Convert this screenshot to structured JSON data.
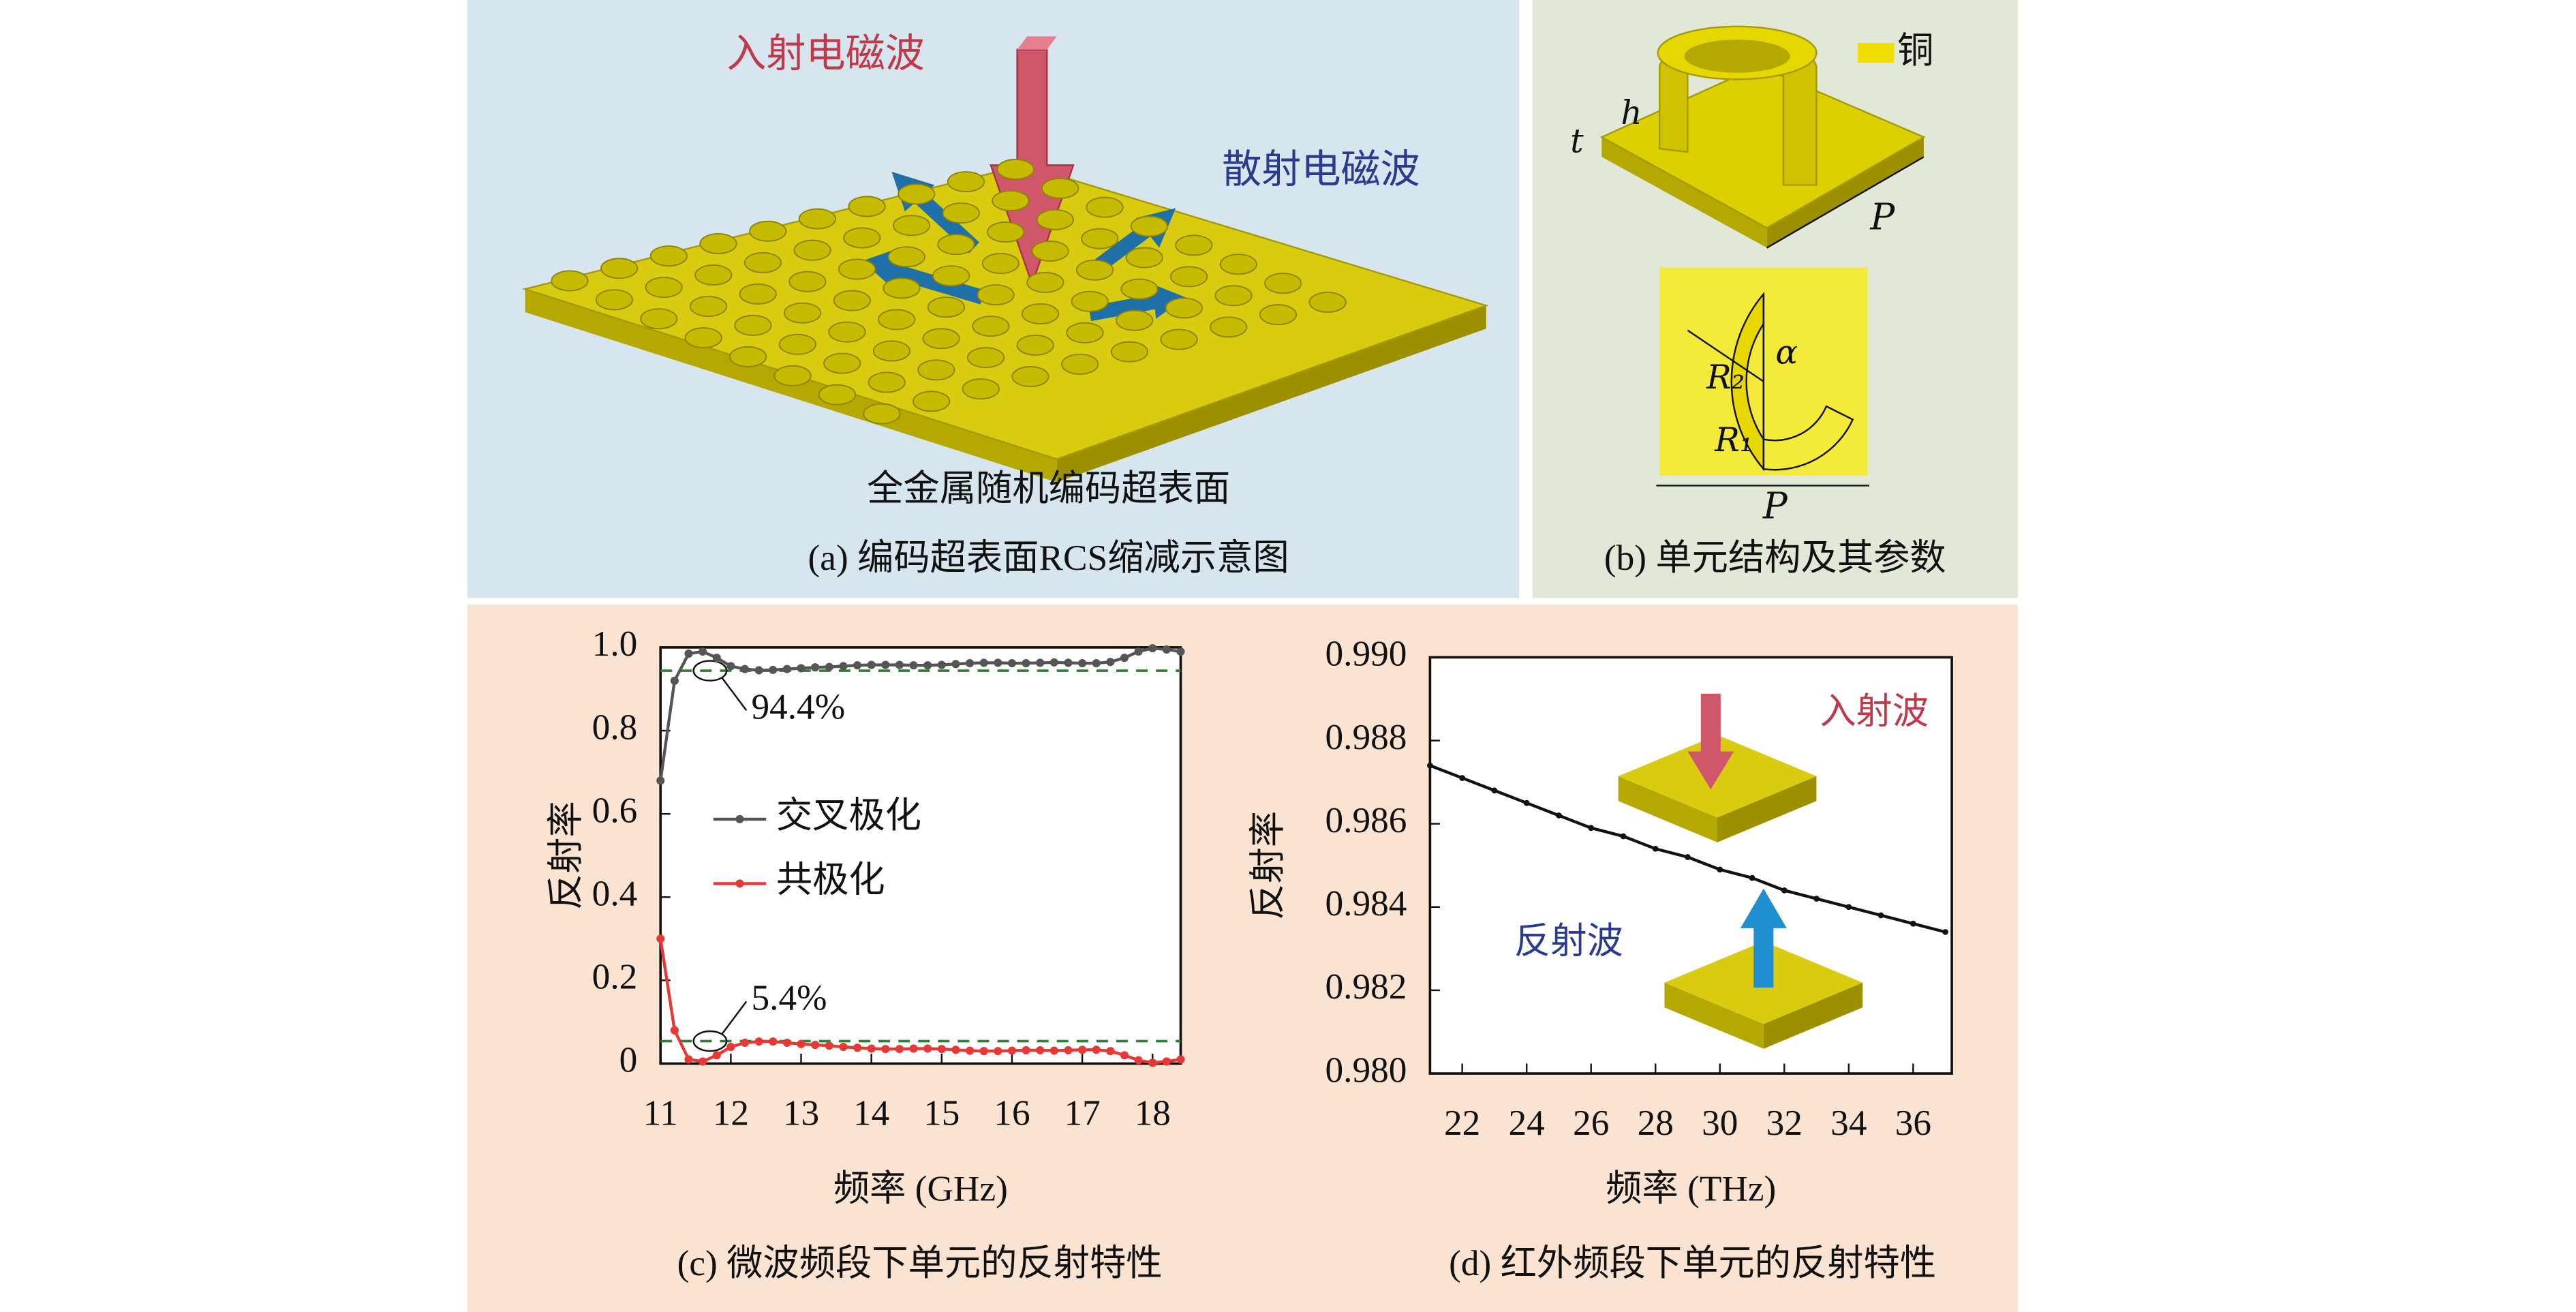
{
  "panels": {
    "a": {
      "incident": "入射电磁波",
      "scattered": "散射电磁波",
      "label": "全金属随机编码超表面",
      "caption": "(a) 编码超表面RCS缩减示意图"
    },
    "b": {
      "legend": "铜",
      "h": "h",
      "t": "t",
      "P_top": "P",
      "alpha": "α",
      "R2": "R₂",
      "R1": "R₁",
      "P_bottom": "P",
      "caption": "(b) 单元结构及其参数"
    }
  },
  "chart_data": [
    {
      "type": "line",
      "caption": "(c) 微波频段下单元的反射特性",
      "xlabel": "频率 (GHz)",
      "ylabel": "反射率",
      "xlim": [
        11,
        18.4
      ],
      "ylim": [
        0,
        1
      ],
      "xticks": [
        11,
        12,
        13,
        14,
        15,
        16,
        17,
        18
      ],
      "yticks": [
        0,
        0.2,
        0.4,
        0.6,
        0.8,
        {
          "value": 1,
          "label": "1.0"
        }
      ],
      "legend": "left",
      "x": [
        11.0,
        11.2,
        11.4,
        11.6,
        11.8,
        12.0,
        12.2,
        12.4,
        12.6,
        12.8,
        13.0,
        13.2,
        13.4,
        13.6,
        13.8,
        14.0,
        14.2,
        14.4,
        14.6,
        14.8,
        15.0,
        15.2,
        15.4,
        15.6,
        15.8,
        16.0,
        16.2,
        16.4,
        16.6,
        16.8,
        17.0,
        17.2,
        17.4,
        17.6,
        17.8,
        18.0,
        18.2,
        18.4
      ],
      "series": [
        {
          "name": "交叉极化",
          "color": "#555555",
          "values": [
            0.68,
            0.92,
            0.985,
            0.99,
            0.975,
            0.955,
            0.948,
            0.945,
            0.946,
            0.948,
            0.95,
            0.952,
            0.953,
            0.955,
            0.957,
            0.958,
            0.958,
            0.958,
            0.957,
            0.957,
            0.958,
            0.96,
            0.962,
            0.963,
            0.963,
            0.962,
            0.962,
            0.963,
            0.964,
            0.963,
            0.962,
            0.962,
            0.965,
            0.975,
            0.99,
            0.998,
            0.995,
            0.99
          ]
        },
        {
          "name": "共极化",
          "color": "#e53935",
          "values": [
            0.3,
            0.08,
            0.01,
            0.005,
            0.02,
            0.04,
            0.05,
            0.053,
            0.053,
            0.05,
            0.047,
            0.045,
            0.043,
            0.04,
            0.038,
            0.036,
            0.035,
            0.035,
            0.036,
            0.036,
            0.035,
            0.033,
            0.031,
            0.03,
            0.03,
            0.031,
            0.032,
            0.032,
            0.031,
            0.032,
            0.033,
            0.033,
            0.03,
            0.02,
            0.008,
            0.002,
            0.005,
            0.01
          ]
        }
      ],
      "reference_lines": [
        {
          "value": 0.944,
          "label": "94.4%"
        },
        {
          "value": 0.054,
          "label": "5.4%"
        }
      ],
      "reference_color": "#2e7d32"
    },
    {
      "type": "line",
      "caption": "(d) 红外频段下单元的反射特性",
      "xlabel": "频率 (THz)",
      "ylabel": "反射率",
      "xlim": [
        21,
        37.2
      ],
      "ylim": [
        0.98,
        0.99
      ],
      "xticks": [
        22,
        24,
        26,
        28,
        30,
        32,
        34,
        36
      ],
      "yticks": [
        {
          "value": 0.98,
          "label": "0.980"
        },
        {
          "value": 0.982,
          "label": "0.982"
        },
        {
          "value": 0.984,
          "label": "0.984"
        },
        {
          "value": 0.986,
          "label": "0.986"
        },
        {
          "value": 0.988,
          "label": "0.988"
        },
        {
          "value": 0.99,
          "label": "0.990"
        }
      ],
      "x": [
        21,
        22,
        23,
        24,
        25,
        26,
        27,
        28,
        29,
        30,
        31,
        32,
        33,
        34,
        35,
        36,
        37
      ],
      "series": [
        {
          "color": "#111111",
          "values": [
            0.9874,
            0.9871,
            0.9868,
            0.9865,
            0.9862,
            0.9859,
            0.9857,
            0.9854,
            0.9852,
            0.9849,
            0.9847,
            0.9844,
            0.9842,
            0.984,
            0.9838,
            0.9836,
            0.9834
          ]
        }
      ],
      "annotations": [
        {
          "text": "入射波",
          "color": "#c0394b"
        },
        {
          "text": "反射波",
          "color": "#2a3a8c"
        }
      ]
    }
  ]
}
